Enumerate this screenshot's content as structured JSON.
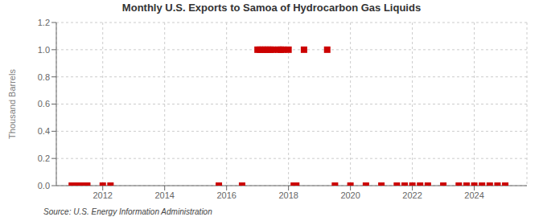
{
  "chart_data": {
    "type": "scatter",
    "title": "Monthly U.S. Exports to Samoa of Hydrocarbon Gas Liquids",
    "ylabel": "Thousand Barrels",
    "annotations": [
      "Source: U.S. Energy Information Administration"
    ],
    "x": [
      2011.0,
      2011.17,
      2011.33,
      2011.5,
      2012.0,
      2012.25,
      2015.75,
      2016.5,
      2017.0,
      2017.08,
      2017.17,
      2017.25,
      2017.33,
      2017.42,
      2017.5,
      2017.67,
      2017.75,
      2017.83,
      2018.0,
      2018.17,
      2018.25,
      2018.5,
      2019.25,
      2019.5,
      2020.0,
      2020.5,
      2021.0,
      2021.5,
      2021.75,
      2022.0,
      2022.25,
      2022.5,
      2023.0,
      2023.5,
      2023.75,
      2024.0,
      2024.25,
      2024.5,
      2024.75,
      2025.0
    ],
    "values": [
      0.0,
      0.0,
      0.0,
      0.0,
      0.0,
      0.0,
      0.0,
      0.0,
      1.0,
      1.0,
      1.0,
      1.0,
      1.0,
      1.0,
      1.0,
      1.0,
      1.0,
      1.0,
      1.0,
      0.0,
      0.0,
      1.0,
      1.0,
      0.0,
      0.0,
      0.0,
      0.0,
      0.0,
      0.0,
      0.0,
      0.0,
      0.0,
      0.0,
      0.0,
      0.0,
      0.0,
      0.0,
      0.0,
      0.0,
      0.0
    ],
    "color": "#cc0000",
    "marker": "square",
    "xlim": [
      2010.5,
      2025.7
    ],
    "xticks": [
      2012,
      2014,
      2016,
      2018,
      2020,
      2022,
      2024
    ],
    "ylim": [
      0,
      1.2
    ],
    "yticks": [
      {
        "value": 0.0,
        "label": "0.0"
      },
      {
        "value": 0.2,
        "label": "0.2"
      },
      {
        "value": 0.4,
        "label": "0.4"
      },
      {
        "value": 0.6,
        "label": "0.6"
      },
      {
        "value": 0.8,
        "label": "0.8"
      },
      {
        "value": 1.0,
        "label": "1.0"
      },
      {
        "value": 1.2,
        "label": "1.2"
      }
    ],
    "grid": true
  }
}
